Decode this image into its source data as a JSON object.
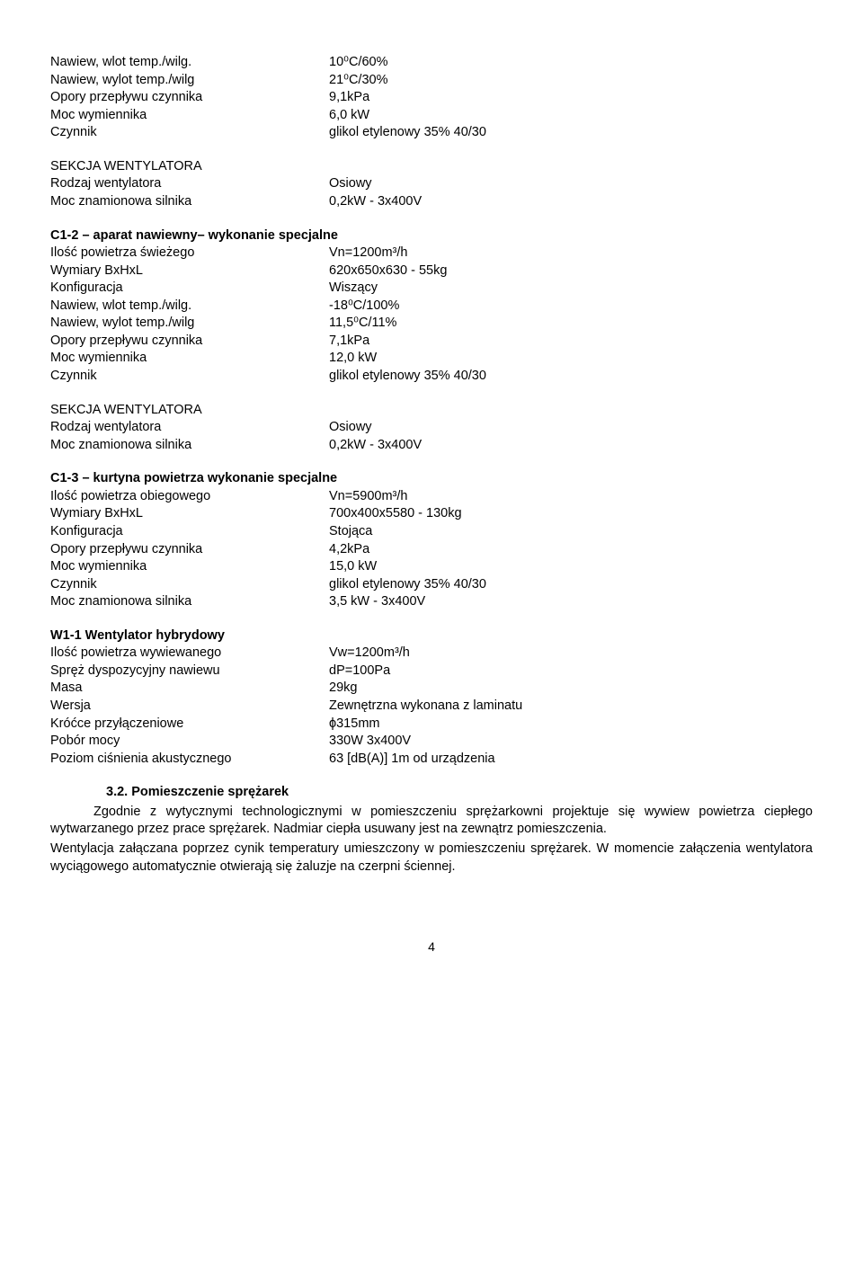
{
  "section0": {
    "rows": [
      {
        "l": "Nawiew, wlot temp./wilg.",
        "v": "10⁰C/60%"
      },
      {
        "l": "Nawiew, wylot temp./wilg",
        "v": "21⁰C/30%"
      },
      {
        "l": "Opory przepływu czynnika",
        "v": "9,1kPa"
      },
      {
        "l": "Moc wymiennika",
        "v": "6,0 kW"
      },
      {
        "l": "Czynnik",
        "v": "glikol etylenowy 35% 40/30"
      }
    ]
  },
  "section0b": {
    "header": "SEKCJA WENTYLATORA",
    "rows": [
      {
        "l": "Rodzaj wentylatora",
        "v": "Osiowy"
      },
      {
        "l": "Moc znamionowa silnika",
        "v": "0,2kW  - 3x400V"
      }
    ]
  },
  "section1": {
    "title": "C1-2 – aparat nawiewny– wykonanie specjalne",
    "rows": [
      {
        "l": "Ilość powietrza świeżego",
        "v": "Vn=1200m³/h"
      },
      {
        "l": "Wymiary BxHxL",
        "v": "620x650x630 - 55kg"
      },
      {
        "l": "Konfiguracja",
        "v": "Wiszący"
      },
      {
        "l": "Nawiew, wlot temp./wilg.",
        "v": "-18⁰C/100%"
      },
      {
        "l": "Nawiew, wylot temp./wilg",
        "v": "11,5⁰C/11%"
      },
      {
        "l": "Opory przepływu czynnika",
        "v": "7,1kPa"
      },
      {
        "l": "Moc wymiennika",
        "v": "12,0 kW"
      },
      {
        "l": "Czynnik",
        "v": "glikol etylenowy 35% 40/30"
      }
    ]
  },
  "section1b": {
    "header": "SEKCJA WENTYLATORA",
    "rows": [
      {
        "l": "Rodzaj wentylatora",
        "v": "Osiowy"
      },
      {
        "l": "Moc znamionowa silnika",
        "v": "0,2kW  - 3x400V"
      }
    ]
  },
  "section2": {
    "title": "C1-3 – kurtyna powietrza wykonanie specjalne",
    "rows": [
      {
        "l": "Ilość powietrza obiegowego",
        "v": "Vn=5900m³/h"
      },
      {
        "l": "Wymiary BxHxL",
        "v": "700x400x5580 - 130kg"
      },
      {
        "l": "Konfiguracja",
        "v": "Stojąca"
      },
      {
        "l": "Opory przepływu czynnika",
        "v": "4,2kPa"
      },
      {
        "l": "Moc wymiennika",
        "v": "15,0 kW"
      },
      {
        "l": "Czynnik",
        "v": "glikol etylenowy 35% 40/30"
      },
      {
        "l": "Moc znamionowa silnika",
        "v": "3,5 kW  - 3x400V"
      }
    ]
  },
  "section3": {
    "title": "W1-1 Wentylator hybrydowy",
    "rows": [
      {
        "l": "Ilość powietrza wywiewanego",
        "v": "Vw=1200m³/h"
      },
      {
        "l": "Spręż dyspozycyjny nawiewu",
        "v": "dP=100Pa"
      },
      {
        "l": "Masa",
        "v": "29kg"
      },
      {
        "l": "Wersja",
        "v": "Zewnętrzna wykonana z laminatu"
      },
      {
        "l": "Króćce przyłączeniowe",
        "v": "ϕ315mm"
      },
      {
        "l": "Pobór mocy",
        "v": "330W 3x400V"
      },
      {
        "l": "Poziom ciśnienia akustycznego",
        "v": "63 [dB(A)] 1m od urządzenia"
      }
    ]
  },
  "sub": {
    "heading": "3.2. Pomieszczenie sprężarek",
    "p1": "Zgodnie z wytycznymi technologicznymi w pomieszczeniu sprężarkowni projektuje się wywiew powietrza ciepłego wytwarzanego przez prace sprężarek. Nadmiar ciepła usuwany jest na zewnątrz pomieszczenia.",
    "p2": "Wentylacja załączana poprzez cynik temperatury umieszczony w pomieszczeniu sprężarek. W momencie załączenia wentylatora wyciągowego automatycznie otwierają się żaluzje na czerpni ściennej."
  },
  "pageNumber": "4"
}
